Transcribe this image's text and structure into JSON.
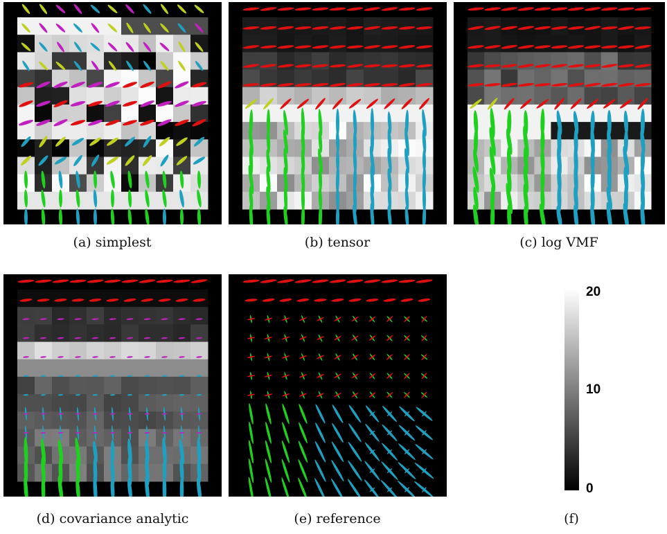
{
  "panels": [
    {
      "id": "a",
      "caption": "(a) simplest"
    },
    {
      "id": "b",
      "caption": "(b) tensor"
    },
    {
      "id": "c",
      "caption": "(c) log VMF"
    },
    {
      "id": "d",
      "caption": "(d) covariance analytic"
    },
    {
      "id": "e",
      "caption": "(e) reference"
    }
  ],
  "colorbar": {
    "caption": "(f)",
    "range": [
      0,
      20
    ],
    "ticks": [
      "20",
      "10",
      "0"
    ],
    "colors": {
      "high": "#ffffff",
      "low": "#000000"
    }
  },
  "glyph_colors": {
    "horizontal": "#e01010",
    "oblique": "#c0d020",
    "vertical": "#20d020",
    "diagonal": "#20a0c0",
    "tilted": "#c020c0"
  }
}
